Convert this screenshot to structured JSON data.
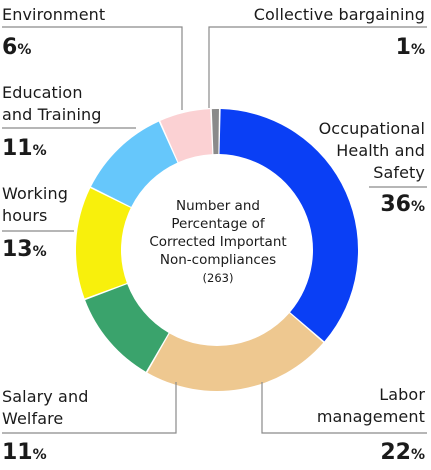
{
  "chart_data": {
    "type": "donut",
    "title": "Number and Percentage of Corrected Important Non-compliances",
    "total_label": "(263)",
    "unit": "%",
    "slices": [
      {
        "name": "Occupational Health and Safety",
        "value": 36,
        "color": "#0a3ff5"
      },
      {
        "name": "Labor management",
        "value": 22,
        "color": "#eec890"
      },
      {
        "name": "Salary and Welfare",
        "value": 11,
        "color": "#3aa36c"
      },
      {
        "name": "Working hours",
        "value": 13,
        "color": "#f8f00c"
      },
      {
        "name": "Education and Training",
        "value": 11,
        "color": "#66c7fb"
      },
      {
        "name": "Environment",
        "value": 6,
        "color": "#fbd1d3"
      },
      {
        "name": "Collective bargaining",
        "value": 1,
        "color": "#8a8a8a"
      }
    ],
    "labels": {
      "ohs": [
        "Occupational",
        "Health and",
        "Safety"
      ],
      "labor": [
        "Labor",
        "management"
      ],
      "salary": [
        "Salary and",
        "Welfare"
      ],
      "working": [
        "Working",
        "hours"
      ],
      "education": [
        "Education",
        "and Training"
      ],
      "environment": [
        "Environment"
      ],
      "collective": [
        "Collective bargaining"
      ]
    },
    "center_lines": [
      "Number and",
      "Percentage of",
      "Corrected Important",
      "Non-compliances"
    ]
  }
}
